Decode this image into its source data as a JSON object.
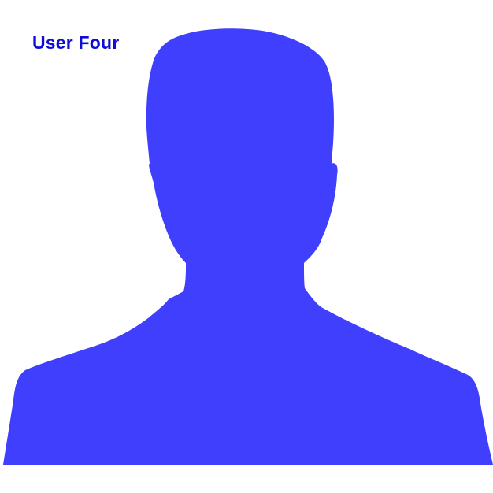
{
  "user": {
    "name": "User Four"
  },
  "avatar": {
    "icon": "person-silhouette-icon",
    "fill_color": "#3f3ffd"
  },
  "colors": {
    "label_color": "#0d0dd8",
    "background": "#ffffff"
  }
}
